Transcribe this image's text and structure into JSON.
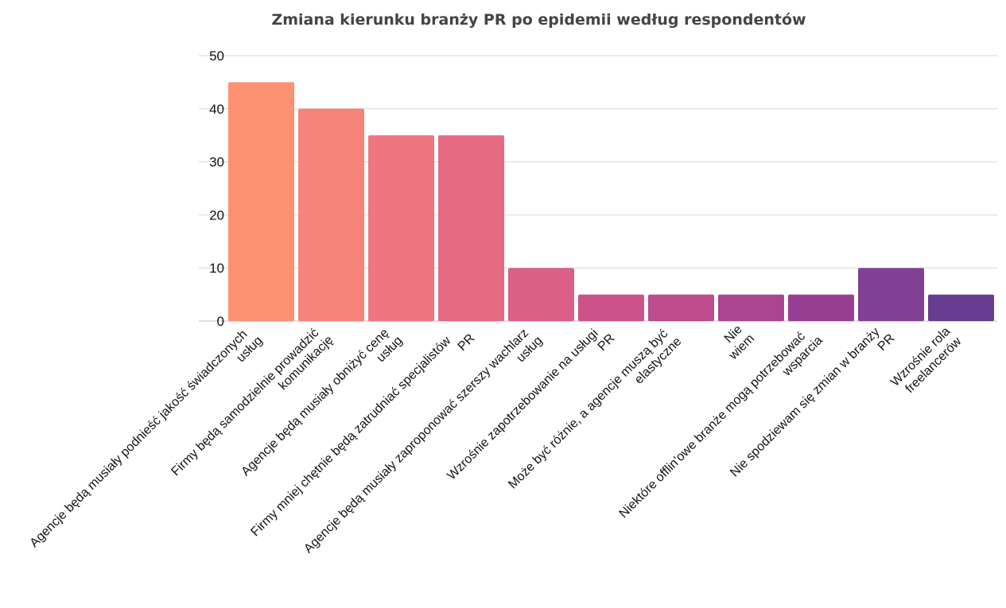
{
  "chart_data": {
    "type": "bar",
    "title": "Zmiana kierunku branży PR po epidemii według respondentów",
    "xlabel": "",
    "ylabel": "",
    "ylim": [
      0,
      50
    ],
    "yticks": [
      0,
      10,
      20,
      30,
      40,
      50
    ],
    "grid": true,
    "categories": [
      "Agencje będą musiały podnieść jakość świadczonych usług",
      "Firmy będą samodzielnie prowadzić komunikację",
      "Agencje będą musiały obniżyć cenę usług",
      "Firmy mniej chętnie będą zatrudniać specjalistów PR",
      "Agencje będą musiały zaproponować szerszy wachlarz usług",
      "Wzrośnie zapotrzebowanie na usługi PR",
      "Może być różnie, a agencje muszą być elastyczne",
      "Nie wiem",
      "Niektóre offlin'owe branże mogą potrzebować wsparcia",
      "Nie spodziewam się zmian w branży PR",
      "Wzrośnie rola freelancerów"
    ],
    "category_lines": [
      [
        "Agencje będą musiały podnieść jakość świadczonych",
        "usług"
      ],
      [
        "Firmy będą samodzielnie prowadzić",
        "komunikację"
      ],
      [
        "Agencje będą musiały obniżyć cenę",
        "usług"
      ],
      [
        "Firmy mniej chętnie będą zatrudniać specjalistów",
        "PR"
      ],
      [
        "Agencje będą musiały zaproponować szerszy wachlarz",
        "usług"
      ],
      [
        "Wzrośnie zapotrzebowanie na usługi",
        "PR"
      ],
      [
        "Może być różnie, a agencje muszą być",
        "elastyczne"
      ],
      [
        "Nie",
        "wiem"
      ],
      [
        "Niektóre offlin'owe branże mogą potrzebować",
        "wsparcia"
      ],
      [
        "Nie spodziewam się zmian w branży",
        "PR"
      ],
      [
        "Wzrośnie rola",
        "freelancerów"
      ]
    ],
    "values": [
      45,
      40,
      35,
      35,
      10,
      5,
      5,
      5,
      5,
      10,
      5
    ],
    "colors": [
      "#fc9272",
      "#f7837a",
      "#ef7580",
      "#e66a81",
      "#db5f86",
      "#cc538a",
      "#bd4b8e",
      "#ab4590",
      "#983f93",
      "#824095",
      "#683c90"
    ]
  }
}
